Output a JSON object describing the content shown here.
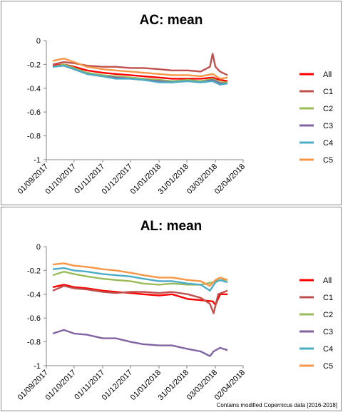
{
  "footer": {
    "credit": "Contains modified Copernicus data [2016-2018]"
  },
  "chart_data": [
    {
      "type": "line",
      "title": "AC: mean",
      "xlabel": "",
      "ylabel": "",
      "xlim": [
        "01/09/2017",
        "02/04/2018"
      ],
      "ylim": [
        -1,
        0
      ],
      "x_ticks": [
        "01/09/2017",
        "01/10/2017",
        "01/11/2017",
        "01/12/2017",
        "01/01/2018",
        "31/01/2018",
        "03/03/2018",
        "02/04/2018"
      ],
      "y_ticks": [
        0,
        -0.2,
        -0.4,
        -0.6,
        -0.8,
        -1
      ],
      "legend": "right",
      "grid": false,
      "series": [
        {
          "name": "All",
          "color": "#ff0000",
          "points": [
            [
              "2017-09-08",
              -0.21
            ],
            [
              "2017-09-20",
              -0.2
            ],
            [
              "2017-10-01",
              -0.22
            ],
            [
              "2017-10-15",
              -0.25
            ],
            [
              "2017-11-01",
              -0.27
            ],
            [
              "2017-11-15",
              -0.28
            ],
            [
              "2017-12-01",
              -0.29
            ],
            [
              "2017-12-15",
              -0.3
            ],
            [
              "2018-01-01",
              -0.31
            ],
            [
              "2018-01-15",
              -0.32
            ],
            [
              "2018-02-01",
              -0.32
            ],
            [
              "2018-02-15",
              -0.32
            ],
            [
              "2018-02-28",
              -0.31
            ],
            [
              "2018-03-08",
              -0.33
            ],
            [
              "2018-03-16",
              -0.34
            ]
          ]
        },
        {
          "name": "C1",
          "color": "#c0504d",
          "points": [
            [
              "2017-09-08",
              -0.2
            ],
            [
              "2017-09-20",
              -0.18
            ],
            [
              "2017-10-01",
              -0.19
            ],
            [
              "2017-10-15",
              -0.21
            ],
            [
              "2017-11-01",
              -0.22
            ],
            [
              "2017-11-15",
              -0.22
            ],
            [
              "2017-12-01",
              -0.23
            ],
            [
              "2017-12-15",
              -0.23
            ],
            [
              "2018-01-01",
              -0.24
            ],
            [
              "2018-01-15",
              -0.25
            ],
            [
              "2018-02-01",
              -0.25
            ],
            [
              "2018-02-15",
              -0.26
            ],
            [
              "2018-02-25",
              -0.22
            ],
            [
              "2018-02-28",
              -0.11
            ],
            [
              "2018-03-03",
              -0.22
            ],
            [
              "2018-03-08",
              -0.26
            ],
            [
              "2018-03-16",
              -0.29
            ]
          ]
        },
        {
          "name": "C2",
          "color": "#9bbb59",
          "points": [
            [
              "2017-09-08",
              -0.22
            ],
            [
              "2017-09-20",
              -0.2
            ],
            [
              "2017-10-01",
              -0.23
            ],
            [
              "2017-10-15",
              -0.27
            ],
            [
              "2017-11-01",
              -0.29
            ],
            [
              "2017-11-15",
              -0.3
            ],
            [
              "2017-12-01",
              -0.31
            ],
            [
              "2017-12-15",
              -0.32
            ],
            [
              "2018-01-01",
              -0.33
            ],
            [
              "2018-01-15",
              -0.34
            ],
            [
              "2018-02-01",
              -0.33
            ],
            [
              "2018-02-15",
              -0.34
            ],
            [
              "2018-02-28",
              -0.32
            ],
            [
              "2018-03-08",
              -0.35
            ],
            [
              "2018-03-16",
              -0.35
            ]
          ]
        },
        {
          "name": "C3",
          "color": "#8064a2",
          "points": [
            [
              "2017-09-08",
              -0.22
            ],
            [
              "2017-09-20",
              -0.21
            ],
            [
              "2017-10-01",
              -0.24
            ],
            [
              "2017-10-15",
              -0.28
            ],
            [
              "2017-11-01",
              -0.3
            ],
            [
              "2017-11-15",
              -0.31
            ],
            [
              "2017-12-01",
              -0.32
            ],
            [
              "2017-12-15",
              -0.33
            ],
            [
              "2018-01-01",
              -0.34
            ],
            [
              "2018-01-15",
              -0.35
            ],
            [
              "2018-02-01",
              -0.34
            ],
            [
              "2018-02-15",
              -0.35
            ],
            [
              "2018-02-28",
              -0.33
            ],
            [
              "2018-03-08",
              -0.36
            ],
            [
              "2018-03-16",
              -0.36
            ]
          ]
        },
        {
          "name": "C4",
          "color": "#4bacc6",
          "points": [
            [
              "2017-09-08",
              -0.22
            ],
            [
              "2017-09-20",
              -0.21
            ],
            [
              "2017-10-01",
              -0.24
            ],
            [
              "2017-10-15",
              -0.28
            ],
            [
              "2017-11-01",
              -0.3
            ],
            [
              "2017-11-15",
              -0.32
            ],
            [
              "2017-12-01",
              -0.32
            ],
            [
              "2017-12-15",
              -0.33
            ],
            [
              "2018-01-01",
              -0.35
            ],
            [
              "2018-01-15",
              -0.35
            ],
            [
              "2018-02-01",
              -0.34
            ],
            [
              "2018-02-15",
              -0.35
            ],
            [
              "2018-02-28",
              -0.34
            ],
            [
              "2018-03-08",
              -0.37
            ],
            [
              "2018-03-16",
              -0.36
            ]
          ]
        },
        {
          "name": "C5",
          "color": "#f79646",
          "points": [
            [
              "2017-09-08",
              -0.17
            ],
            [
              "2017-09-20",
              -0.15
            ],
            [
              "2017-10-01",
              -0.18
            ],
            [
              "2017-10-15",
              -0.22
            ],
            [
              "2017-11-01",
              -0.24
            ],
            [
              "2017-11-15",
              -0.25
            ],
            [
              "2017-12-01",
              -0.26
            ],
            [
              "2017-12-15",
              -0.27
            ],
            [
              "2018-01-01",
              -0.28
            ],
            [
              "2018-01-15",
              -0.29
            ],
            [
              "2018-02-01",
              -0.29
            ],
            [
              "2018-02-15",
              -0.3
            ],
            [
              "2018-02-28",
              -0.28
            ],
            [
              "2018-03-08",
              -0.32
            ],
            [
              "2018-03-16",
              -0.31
            ]
          ]
        }
      ]
    },
    {
      "type": "line",
      "title": "AL: mean",
      "xlabel": "",
      "ylabel": "",
      "xlim": [
        "01/09/2017",
        "02/04/2018"
      ],
      "ylim": [
        -1,
        0
      ],
      "x_ticks": [
        "01/09/2017",
        "01/10/2017",
        "01/11/2017",
        "01/12/2017",
        "01/01/2018",
        "31/01/2018",
        "03/03/2018",
        "02/04/2018"
      ],
      "y_ticks": [
        0,
        -0.2,
        -0.4,
        -0.6,
        -0.8,
        -1
      ],
      "legend": "right",
      "grid": false,
      "series": [
        {
          "name": "All",
          "color": "#ff0000",
          "points": [
            [
              "2017-09-08",
              -0.34
            ],
            [
              "2017-09-20",
              -0.32
            ],
            [
              "2017-10-01",
              -0.34
            ],
            [
              "2017-10-15",
              -0.35
            ],
            [
              "2017-11-01",
              -0.37
            ],
            [
              "2017-11-15",
              -0.38
            ],
            [
              "2017-12-01",
              -0.39
            ],
            [
              "2017-12-15",
              -0.4
            ],
            [
              "2018-01-01",
              -0.41
            ],
            [
              "2018-01-15",
              -0.4
            ],
            [
              "2018-02-01",
              -0.44
            ],
            [
              "2018-02-15",
              -0.45
            ],
            [
              "2018-02-28",
              -0.46
            ],
            [
              "2018-03-03",
              -0.49
            ],
            [
              "2018-03-08",
              -0.4
            ],
            [
              "2018-03-16",
              -0.4
            ]
          ]
        },
        {
          "name": "C1",
          "color": "#c0504d",
          "points": [
            [
              "2017-09-08",
              -0.37
            ],
            [
              "2017-09-20",
              -0.33
            ],
            [
              "2017-10-01",
              -0.35
            ],
            [
              "2017-10-15",
              -0.36
            ],
            [
              "2017-11-01",
              -0.38
            ],
            [
              "2017-11-15",
              -0.39
            ],
            [
              "2017-12-01",
              -0.38
            ],
            [
              "2017-12-15",
              -0.38
            ],
            [
              "2018-01-01",
              -0.39
            ],
            [
              "2018-01-15",
              -0.38
            ],
            [
              "2018-02-01",
              -0.4
            ],
            [
              "2018-02-15",
              -0.43
            ],
            [
              "2018-02-25",
              -0.48
            ],
            [
              "2018-03-01",
              -0.56
            ],
            [
              "2018-03-06",
              -0.4
            ],
            [
              "2018-03-16",
              -0.37
            ]
          ]
        },
        {
          "name": "C2",
          "color": "#9bbb59",
          "points": [
            [
              "2017-09-08",
              -0.24
            ],
            [
              "2017-09-20",
              -0.21
            ],
            [
              "2017-10-01",
              -0.23
            ],
            [
              "2017-10-15",
              -0.25
            ],
            [
              "2017-11-01",
              -0.27
            ],
            [
              "2017-11-15",
              -0.28
            ],
            [
              "2017-12-01",
              -0.29
            ],
            [
              "2017-12-15",
              -0.31
            ],
            [
              "2018-01-01",
              -0.32
            ],
            [
              "2018-01-15",
              -0.31
            ],
            [
              "2018-02-01",
              -0.32
            ],
            [
              "2018-02-15",
              -0.32
            ],
            [
              "2018-02-28",
              -0.3
            ],
            [
              "2018-03-08",
              -0.28
            ],
            [
              "2018-03-16",
              -0.28
            ]
          ]
        },
        {
          "name": "C3",
          "color": "#8064a2",
          "points": [
            [
              "2017-09-08",
              -0.73
            ],
            [
              "2017-09-20",
              -0.7
            ],
            [
              "2017-10-01",
              -0.73
            ],
            [
              "2017-10-15",
              -0.74
            ],
            [
              "2017-11-01",
              -0.77
            ],
            [
              "2017-11-15",
              -0.77
            ],
            [
              "2017-12-01",
              -0.8
            ],
            [
              "2017-12-15",
              -0.82
            ],
            [
              "2018-01-01",
              -0.83
            ],
            [
              "2018-01-15",
              -0.83
            ],
            [
              "2018-02-01",
              -0.86
            ],
            [
              "2018-02-15",
              -0.88
            ],
            [
              "2018-02-25",
              -0.92
            ],
            [
              "2018-03-01",
              -0.88
            ],
            [
              "2018-03-08",
              -0.85
            ],
            [
              "2018-03-16",
              -0.87
            ]
          ]
        },
        {
          "name": "C4",
          "color": "#4bacc6",
          "points": [
            [
              "2017-09-08",
              -0.19
            ],
            [
              "2017-09-20",
              -0.18
            ],
            [
              "2017-10-01",
              -0.2
            ],
            [
              "2017-10-15",
              -0.21
            ],
            [
              "2017-11-01",
              -0.23
            ],
            [
              "2017-11-15",
              -0.24
            ],
            [
              "2017-12-01",
              -0.25
            ],
            [
              "2017-12-15",
              -0.27
            ],
            [
              "2018-01-01",
              -0.29
            ],
            [
              "2018-01-15",
              -0.29
            ],
            [
              "2018-02-01",
              -0.31
            ],
            [
              "2018-02-15",
              -0.32
            ],
            [
              "2018-02-25",
              -0.37
            ],
            [
              "2018-03-03",
              -0.3
            ],
            [
              "2018-03-08",
              -0.28
            ],
            [
              "2018-03-16",
              -0.3
            ]
          ]
        },
        {
          "name": "C5",
          "color": "#f79646",
          "points": [
            [
              "2017-09-08",
              -0.15
            ],
            [
              "2017-09-20",
              -0.14
            ],
            [
              "2017-10-01",
              -0.16
            ],
            [
              "2017-10-15",
              -0.17
            ],
            [
              "2017-11-01",
              -0.19
            ],
            [
              "2017-11-15",
              -0.2
            ],
            [
              "2017-12-01",
              -0.22
            ],
            [
              "2017-12-15",
              -0.24
            ],
            [
              "2018-01-01",
              -0.26
            ],
            [
              "2018-01-15",
              -0.26
            ],
            [
              "2018-02-01",
              -0.28
            ],
            [
              "2018-02-15",
              -0.29
            ],
            [
              "2018-02-25",
              -0.33
            ],
            [
              "2018-03-03",
              -0.28
            ],
            [
              "2018-03-08",
              -0.26
            ],
            [
              "2018-03-16",
              -0.28
            ]
          ]
        }
      ]
    }
  ]
}
